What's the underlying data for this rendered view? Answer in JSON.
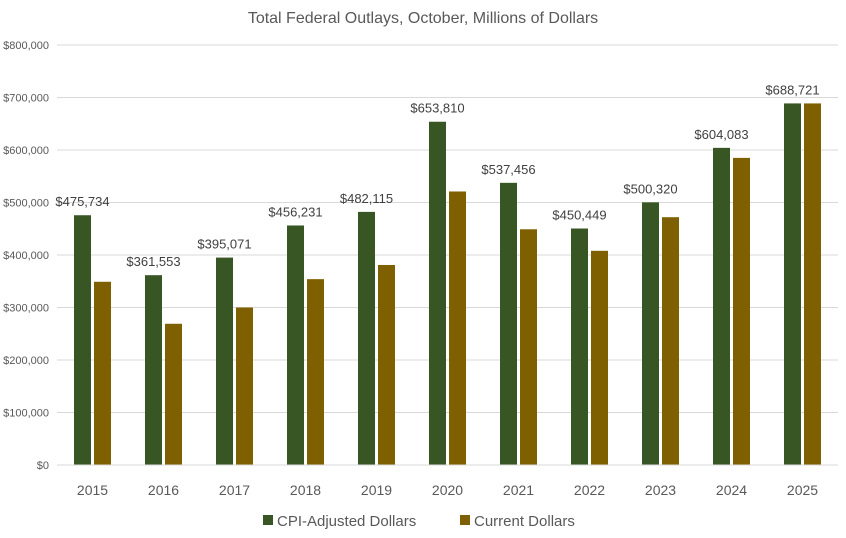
{
  "chart_data": {
    "type": "bar",
    "title": "Total Federal Outlays, October, Millions of Dollars",
    "xlabel": "",
    "ylabel": "",
    "ylim": [
      0,
      800000
    ],
    "yticks": [
      0,
      100000,
      200000,
      300000,
      400000,
      500000,
      600000,
      700000,
      800000
    ],
    "ytick_labels": [
      "$0",
      "$100,000",
      "$200,000",
      "$300,000",
      "$400,000",
      "$500,000",
      "$600,000",
      "$700,000",
      "$800,000"
    ],
    "grid": true,
    "legend_position": "bottom",
    "categories": [
      "2015",
      "2016",
      "2017",
      "2018",
      "2019",
      "2020",
      "2021",
      "2022",
      "2023",
      "2024",
      "2025"
    ],
    "series": [
      {
        "name": "CPI-Adjusted Dollars",
        "color": "#375623",
        "values": [
          475734,
          361553,
          395071,
          456231,
          482115,
          653810,
          537456,
          450449,
          500320,
          604083,
          688721
        ],
        "data_labels": [
          "$475,734",
          "$361,553",
          "$395,071",
          "$456,231",
          "$482,115",
          "$653,810",
          "$537,456",
          "$450,449",
          "$500,320",
          "$604,083",
          "$688,721"
        ]
      },
      {
        "name": "Current Dollars",
        "color": "#7F6000",
        "values": [
          349000,
          269000,
          300000,
          354000,
          381000,
          521000,
          449000,
          408000,
          472000,
          585000,
          688721
        ]
      }
    ]
  }
}
